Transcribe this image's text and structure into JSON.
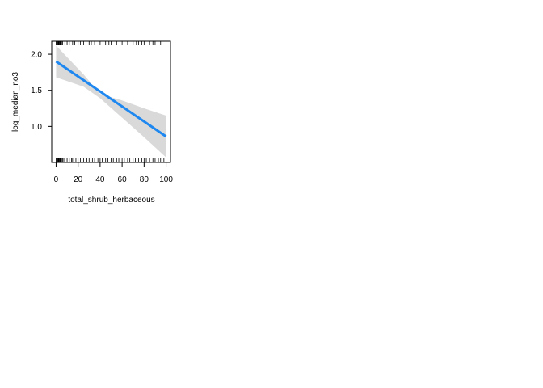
{
  "chart_data": {
    "type": "line",
    "title": "",
    "xlabel": "total_shrub_herbaceous",
    "ylabel": "log_median_no3",
    "xlim": [
      -4,
      104
    ],
    "ylim": [
      0.5,
      2.18
    ],
    "x_ticks": [
      0,
      20,
      40,
      60,
      80,
      100
    ],
    "y_ticks": [
      1.0,
      1.5,
      2.0
    ],
    "x_tick_labels": [
      "0",
      "20",
      "40",
      "60",
      "80",
      "100"
    ],
    "y_tick_labels": [
      "1.0",
      "1.5",
      "2.0"
    ],
    "grid": false,
    "series": [
      {
        "x": [
          0,
          100
        ],
        "y": [
          1.9,
          0.86
        ]
      }
    ],
    "confidence_band": {
      "x": [
        0,
        25,
        40,
        60,
        80,
        100
      ],
      "upper": [
        2.12,
        1.72,
        1.45,
        1.36,
        1.25,
        1.15
      ],
      "lower": [
        1.68,
        1.55,
        1.39,
        1.12,
        0.85,
        0.57
      ]
    },
    "rug_top_x": [
      0,
      0.5,
      1,
      1.5,
      2,
      2.5,
      3,
      3.5,
      4,
      4.5,
      5,
      6,
      8,
      10,
      12,
      15,
      17,
      20,
      22,
      25,
      30,
      32,
      35,
      40,
      45,
      48,
      50,
      55,
      60,
      65,
      70,
      73,
      75,
      78,
      80,
      85,
      88,
      90,
      95,
      100
    ],
    "rug_bottom_x": [
      0,
      0.5,
      1,
      1.5,
      2,
      2.5,
      3,
      3.5,
      4,
      4.5,
      5,
      6,
      7,
      8,
      10,
      12,
      14,
      15,
      18,
      20,
      22,
      25,
      28,
      30,
      33,
      35,
      38,
      40,
      42,
      45,
      47,
      50,
      52,
      55,
      57,
      60,
      62,
      65,
      67,
      70,
      72,
      75,
      78,
      80,
      82,
      85,
      88,
      90,
      93,
      95,
      98,
      100
    ],
    "colors": {
      "line": "#1e88f0",
      "band": "#d9d9d9",
      "axis": "#000000"
    }
  }
}
